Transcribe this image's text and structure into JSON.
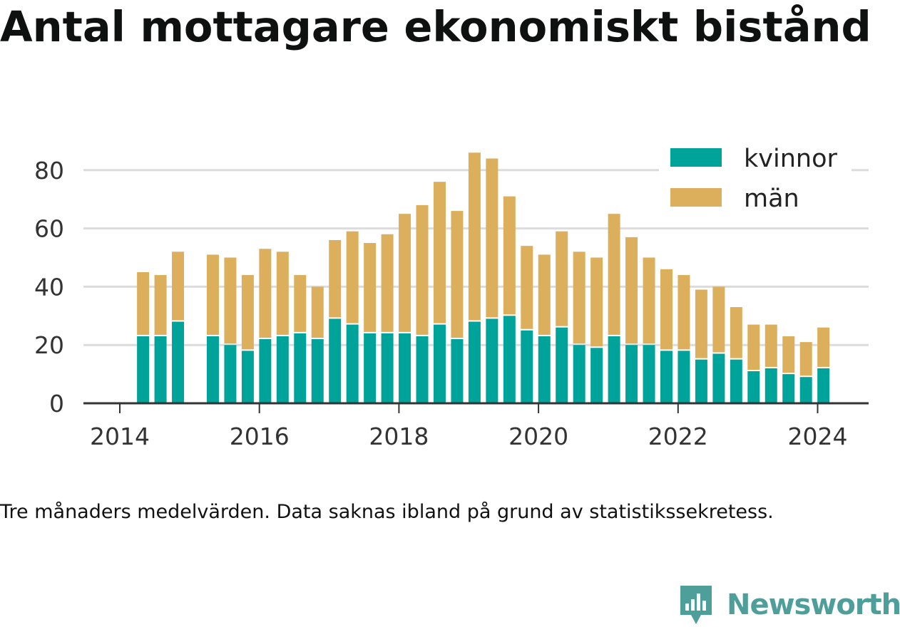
{
  "title": "Antal mottagare ekonomiskt bistånd",
  "note": "Tre månaders medelvärden. Data saknas ibland på grund av statistikssekretess.",
  "brand": {
    "name": "Newsworthy",
    "icon": "bar-chart-speech-bubble-icon",
    "color": "#4e9e9a"
  },
  "colors": {
    "kvinnor": "#00a39a",
    "man": "#dcaf5c",
    "grid": "#dcdcdc",
    "axis": "#333333"
  },
  "chart_data": {
    "type": "bar",
    "stacked": true,
    "x_ticks": [
      "2014",
      "2016",
      "2018",
      "2020",
      "2022",
      "2024"
    ],
    "y_ticks": [
      "0",
      "20",
      "40",
      "60",
      "80"
    ],
    "ylim": [
      0,
      90
    ],
    "xlim": [
      "2013-10",
      "2025-01"
    ],
    "grid": true,
    "legend_position": "top-right",
    "categories": [
      "2014-05",
      "2014-08",
      "2014-11",
      "2015-05",
      "2015-08",
      "2015-11",
      "2016-02",
      "2016-05",
      "2016-08",
      "2016-11",
      "2017-02",
      "2017-05",
      "2017-08",
      "2017-11",
      "2018-02",
      "2018-05",
      "2018-08",
      "2018-11",
      "2019-02",
      "2019-05",
      "2019-08",
      "2019-11",
      "2020-02",
      "2020-05",
      "2020-08",
      "2020-11",
      "2021-02",
      "2021-05",
      "2021-08",
      "2021-11",
      "2022-02",
      "2022-05",
      "2022-08",
      "2022-11",
      "2023-02",
      "2023-05",
      "2023-08",
      "2023-11",
      "2024-02"
    ],
    "series": [
      {
        "name": "kvinnor",
        "color": "#00a39a",
        "values": [
          23,
          23,
          28,
          23,
          20,
          18,
          22,
          23,
          24,
          22,
          29,
          27,
          24,
          24,
          24,
          23,
          27,
          22,
          28,
          29,
          30,
          25,
          23,
          26,
          20,
          19,
          23,
          20,
          20,
          18,
          18,
          15,
          17,
          15,
          11,
          12,
          10,
          9,
          12
        ]
      },
      {
        "name": "män",
        "color": "#dcaf5c",
        "values": [
          22,
          21,
          24,
          28,
          30,
          26,
          31,
          29,
          20,
          18,
          27,
          32,
          31,
          34,
          41,
          45,
          49,
          44,
          58,
          55,
          41,
          29,
          28,
          33,
          32,
          31,
          42,
          37,
          30,
          28,
          26,
          24,
          23,
          18,
          16,
          15,
          13,
          12,
          14
        ]
      }
    ]
  }
}
